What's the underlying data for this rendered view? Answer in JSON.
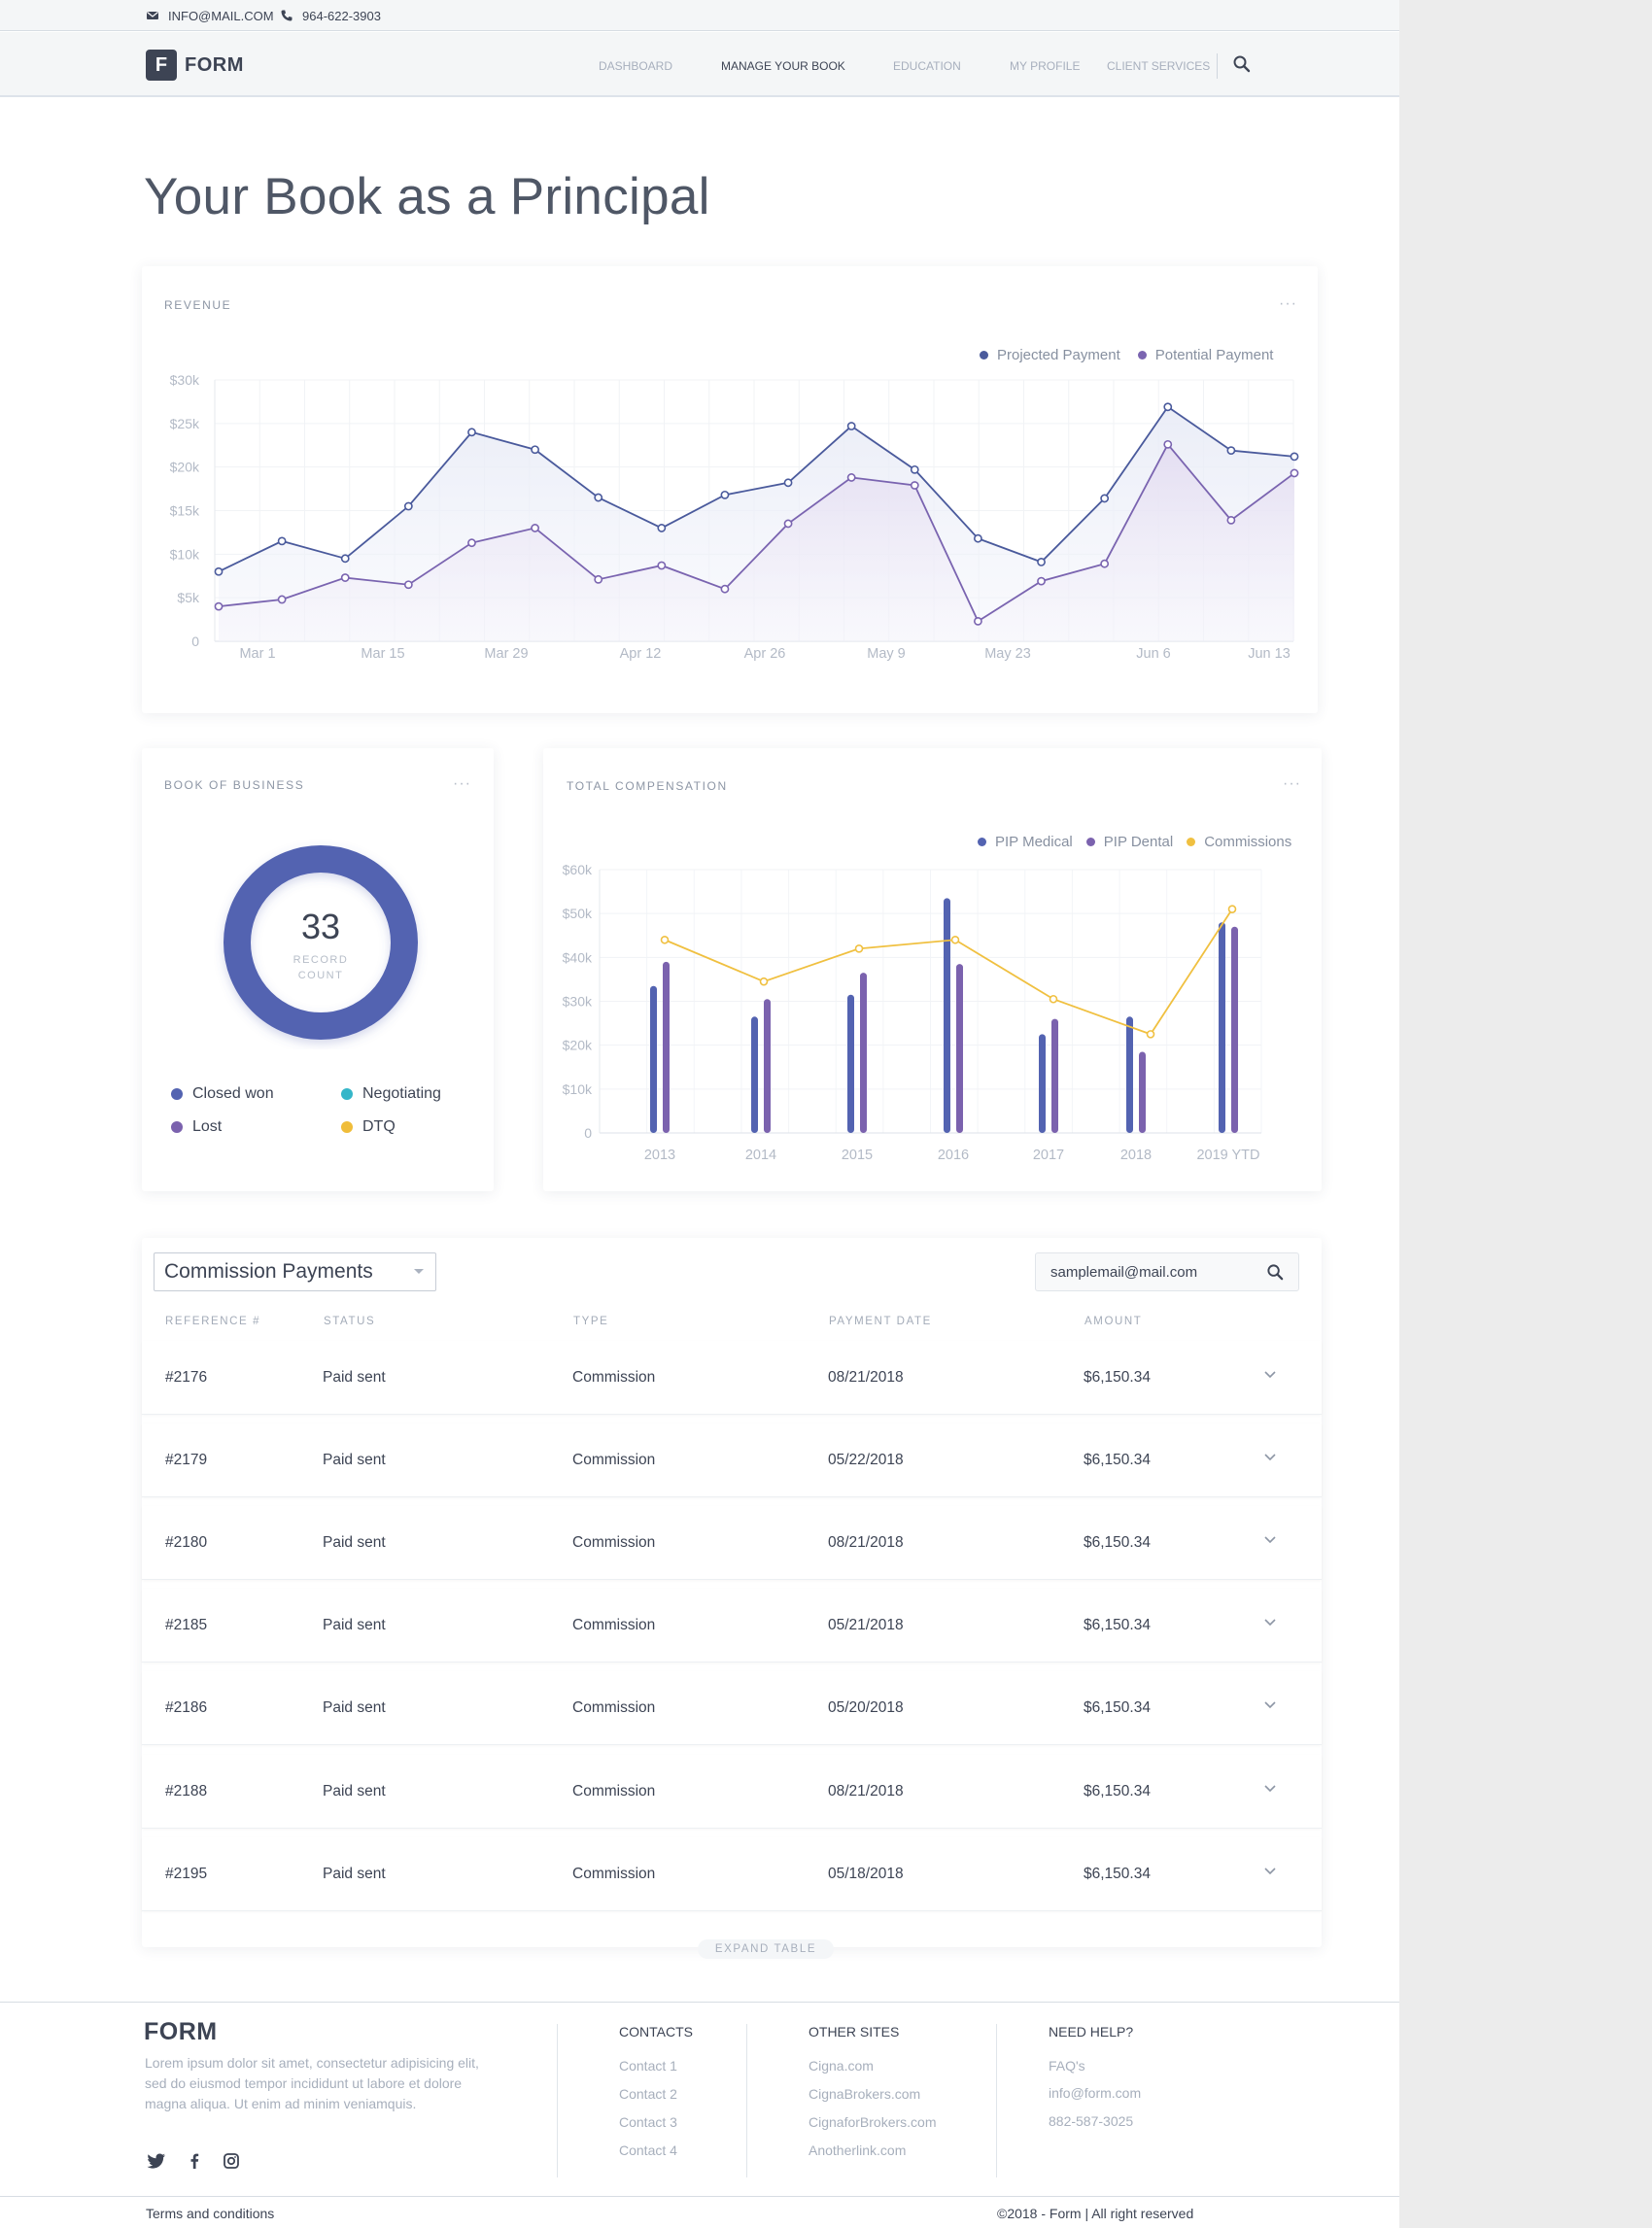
{
  "topbar": {
    "email": "INFO@MAIL.COM",
    "phone": "964-622-3903"
  },
  "nav": {
    "logo_letter": "F",
    "logo_text": "FORM",
    "items": [
      "DASHBOARD",
      "MANAGE YOUR BOOK",
      "EDUCATION",
      "MY PROFILE",
      "CLIENT SERVICES"
    ],
    "active_item": "MANAGE YOUR BOOK"
  },
  "page_title": "Your Book as a Principal",
  "revenue": {
    "title": "REVENUE",
    "menu": "···",
    "legend": [
      "Projected Payment",
      "Potential Payment"
    ]
  },
  "book_of_business": {
    "title": "BOOK OF BUSINESS",
    "menu": "···",
    "count": "33",
    "count_label_1": "RECORD",
    "count_label_2": "COUNT",
    "legend": [
      "Closed won",
      "Negotiating",
      "Lost",
      "DTQ"
    ],
    "legend_colors": [
      "#5363b1",
      "#35b6c9",
      "#7b62ae",
      "#f0bd3a"
    ]
  },
  "total_compensation": {
    "title": "TOTAL COMPENSATION",
    "menu": "···",
    "legend": [
      "PIP Medical",
      "PIP Dental",
      "Commissions"
    ]
  },
  "chart_data": [
    {
      "type": "area",
      "x_tick_labels": [
        "Mar 1",
        "Mar 15",
        "Mar 29",
        "Apr 12",
        "Apr 26",
        "May 9",
        "May 23",
        "Jun 6",
        "Jun 13"
      ],
      "y_tick_labels": [
        "0",
        "$5k",
        "$10k",
        "$15k",
        "$20k",
        "$25k",
        "$30k"
      ],
      "ylim": [
        0,
        30000
      ],
      "series": [
        {
          "name": "Projected Payment",
          "color": "#4a5a9c",
          "values": [
            8000,
            11500,
            9500,
            15500,
            24000,
            22000,
            16500,
            13000,
            16800,
            18200,
            24700,
            19700,
            11800,
            9100,
            16400,
            26900,
            21900,
            21200
          ]
        },
        {
          "name": "Potential Payment",
          "color": "#7a64b0",
          "values": [
            4000,
            4800,
            7300,
            6500,
            11300,
            13000,
            7100,
            8700,
            6000,
            13500,
            18800,
            17900,
            2300,
            6900,
            8900,
            22600,
            13900,
            19300
          ]
        }
      ],
      "grid": true
    },
    {
      "type": "bar",
      "categories": [
        "2013",
        "2014",
        "2015",
        "2016",
        "2017",
        "2018",
        "2019 YTD"
      ],
      "y_tick_labels": [
        "0",
        "$10k",
        "$20k",
        "$30k",
        "$40k",
        "$50k",
        "$60k"
      ],
      "ylim": [
        0,
        60000
      ],
      "series": [
        {
          "name": "PIP Medical",
          "type": "bar",
          "color": "#5363b1",
          "values": [
            33500,
            26500,
            31500,
            53500,
            22500,
            26500,
            48000
          ]
        },
        {
          "name": "PIP Dental",
          "type": "bar",
          "color": "#7b62ae",
          "values": [
            39000,
            30500,
            36500,
            38500,
            26000,
            18500,
            47000
          ]
        },
        {
          "name": "Commissions",
          "type": "line",
          "color": "#f0c040",
          "values": [
            44000,
            34500,
            42000,
            44000,
            30500,
            22500,
            51000
          ]
        }
      ],
      "grid": true
    }
  ],
  "table": {
    "dropdown_value": "Commission Payments",
    "search_value": "samplemail@mail.com",
    "headers": [
      "REFERENCE #",
      "STATUS",
      "TYPE",
      "PAYMENT DATE",
      "AMOUNT"
    ],
    "rows": [
      {
        "ref": "#2176",
        "status": "Paid sent",
        "type": "Commission",
        "date": "08/21/2018",
        "amount": "$6,150.34"
      },
      {
        "ref": "#2179",
        "status": "Paid sent",
        "type": "Commission",
        "date": "05/22/2018",
        "amount": "$6,150.34"
      },
      {
        "ref": "#2180",
        "status": "Paid sent",
        "type": "Commission",
        "date": "08/21/2018",
        "amount": "$6,150.34"
      },
      {
        "ref": "#2185",
        "status": "Paid sent",
        "type": "Commission",
        "date": "05/21/2018",
        "amount": "$6,150.34"
      },
      {
        "ref": "#2186",
        "status": "Paid sent",
        "type": "Commission",
        "date": "05/20/2018",
        "amount": "$6,150.34"
      },
      {
        "ref": "#2188",
        "status": "Paid sent",
        "type": "Commission",
        "date": "08/21/2018",
        "amount": "$6,150.34"
      },
      {
        "ref": "#2195",
        "status": "Paid sent",
        "type": "Commission",
        "date": "05/18/2018",
        "amount": "$6,150.34"
      }
    ],
    "expand_label": "EXPAND TABLE"
  },
  "footer": {
    "logo": "FORM",
    "text": "Lorem ipsum dolor sit amet, consectetur adipisicing elit, sed do eiusmod tempor incididunt ut labore et dolore magna aliqua. Ut enim ad minim veniamquis.",
    "contacts_title": "CONTACTS",
    "contacts": [
      "Contact 1",
      "Contact 2",
      "Contact 3",
      "Contact 4"
    ],
    "other_sites_title": "OTHER SITES",
    "other_sites": [
      "Cigna.com",
      "CignaBrokers.com",
      "CignaforBrokers.com",
      "Anotherlink.com"
    ],
    "help_title": "NEED HELP?",
    "help": [
      "FAQ's",
      "info@form.com",
      "882-587-3025"
    ],
    "terms": "Terms and conditions",
    "copyright": "©2018 - Form  |   All right reserved"
  }
}
